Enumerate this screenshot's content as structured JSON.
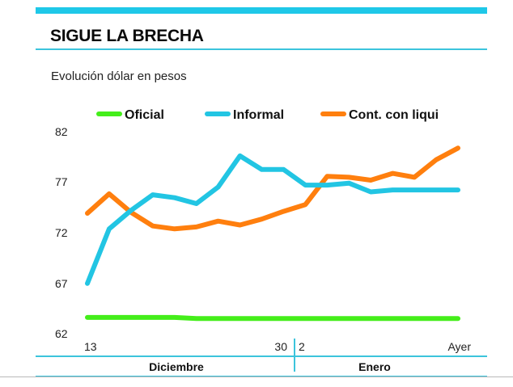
{
  "header": {
    "title": "SIGUE LA BRECHA",
    "subtitle": "Evolución dólar en pesos"
  },
  "colors": {
    "accent": "#1ec8e8",
    "oficial": "#44ee1a",
    "informal": "#22c5e3",
    "ccl": "#ff7f0e"
  },
  "chart_data": {
    "type": "line",
    "title": "SIGUE LA BRECHA",
    "subtitle": "Evolución dólar en pesos",
    "xlabel": "",
    "ylabel": "",
    "ylim": [
      62,
      82
    ],
    "yticks": [
      82,
      77,
      72,
      67,
      62
    ],
    "grid": false,
    "legend_position": "top",
    "x_tick_labels": [
      {
        "index": 0,
        "label": "13"
      },
      {
        "index": 9,
        "label": "30"
      },
      {
        "index": 10,
        "label": "2"
      },
      {
        "index": 17,
        "label": "Ayer"
      }
    ],
    "month_groups": [
      {
        "label": "Diciembre",
        "start_index": 0,
        "end_index": 9
      },
      {
        "label": "Enero",
        "start_index": 10,
        "end_index": 17
      }
    ],
    "point_count": 18,
    "series": [
      {
        "name": "Oficial",
        "color": "#44ee1a",
        "values": [
          63.0,
          63.0,
          63.0,
          63.0,
          63.0,
          62.9,
          62.9,
          62.9,
          62.9,
          62.9,
          62.9,
          62.9,
          62.9,
          62.9,
          62.9,
          62.9,
          62.9,
          62.9
        ]
      },
      {
        "name": "Informal",
        "color": "#22c5e3",
        "values": [
          66.5,
          72.1,
          74.0,
          75.6,
          75.3,
          74.7,
          76.4,
          79.6,
          78.2,
          78.2,
          76.6,
          76.6,
          76.8,
          75.9,
          76.1,
          76.1,
          76.1,
          76.1
        ]
      },
      {
        "name": "Cont. con liqui",
        "color": "#ff7f0e",
        "values": [
          73.7,
          75.7,
          73.8,
          72.4,
          72.1,
          72.3,
          72.9,
          72.5,
          73.1,
          73.9,
          74.6,
          77.5,
          77.4,
          77.1,
          77.8,
          77.4,
          79.2,
          80.4
        ]
      }
    ]
  }
}
